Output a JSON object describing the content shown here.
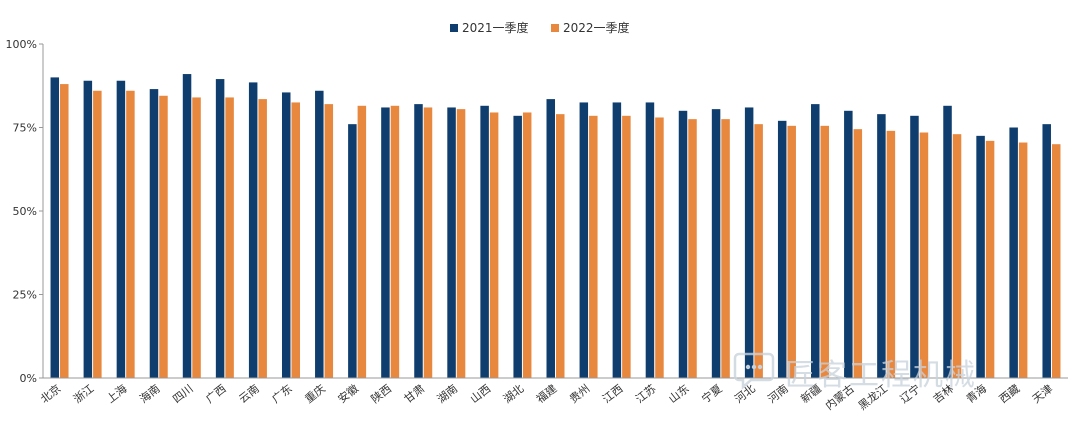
{
  "chart_data": {
    "type": "bar",
    "title": "",
    "xlabel": "",
    "ylabel": "",
    "ylim": [
      0,
      100
    ],
    "yticks": [
      "0%",
      "25%",
      "50%",
      "75%",
      "100%"
    ],
    "ytick_values": [
      0,
      25,
      50,
      75,
      100
    ],
    "grid": false,
    "legend_position": "top-center",
    "categories": [
      "北京",
      "浙江",
      "上海",
      "海南",
      "四川",
      "广西",
      "云南",
      "广东",
      "重庆",
      "安徽",
      "陕西",
      "甘肃",
      "湖南",
      "山西",
      "湖北",
      "福建",
      "贵州",
      "江西",
      "江苏",
      "山东",
      "宁夏",
      "河北",
      "河南",
      "新疆",
      "内蒙古",
      "黑龙江",
      "辽宁",
      "吉林",
      "青海",
      "西藏",
      "天津"
    ],
    "series": [
      {
        "name": "2021一季度",
        "color": "#0e3d6e",
        "values": [
          90,
          89,
          89,
          86.5,
          91,
          89.5,
          88.5,
          85.5,
          86,
          76,
          81,
          82,
          81,
          81.5,
          78.5,
          83.5,
          82.5,
          82.5,
          82.5,
          80,
          80.5,
          81,
          77,
          82,
          80,
          79,
          78.5,
          81.5,
          72.5,
          75,
          76
        ]
      },
      {
        "name": "2022一季度",
        "color": "#e8873e",
        "values": [
          88,
          86,
          86,
          84.5,
          84,
          84,
          83.5,
          82.5,
          82,
          81.5,
          81.5,
          81,
          80.5,
          79.5,
          79.5,
          79,
          78.5,
          78.5,
          78,
          77.5,
          77.5,
          76,
          75.5,
          75.5,
          74.5,
          74,
          73.5,
          73,
          71,
          70.5,
          70
        ]
      }
    ]
  },
  "watermark": {
    "text": "匠客工程机械",
    "icon": "chat-bubble-icon"
  }
}
